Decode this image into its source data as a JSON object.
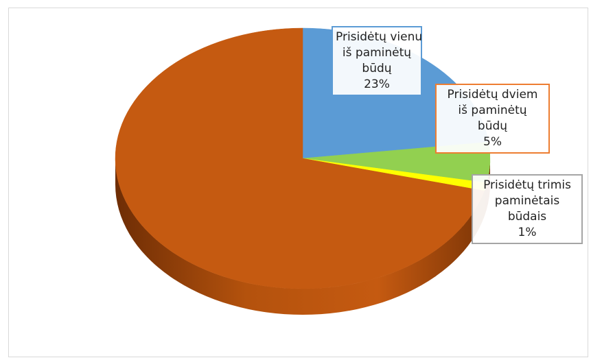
{
  "chart_data": {
    "type": "pie",
    "style": "3d",
    "slices": [
      {
        "label_lines": [
          "Prisidėtų vienu",
          "iš paminėtų",
          "būdų"
        ],
        "value": 23,
        "display": "23%",
        "color": "#5b9bd5"
      },
      {
        "label_lines": [
          "Prisidėtų dviem",
          "iš paminėtų",
          "būdų"
        ],
        "value": 5,
        "display": "5%",
        "color": "#92d050"
      },
      {
        "label_lines": [
          "Prisidėtų trimis",
          "paminėtais",
          "būdais"
        ],
        "value": 1,
        "display": "1%",
        "color": "#ffff00"
      },
      {
        "label_lines": [],
        "value": 71,
        "display": "",
        "color": "#c55a11"
      }
    ]
  },
  "labels": [
    {
      "line1": "Prisidėtų vienu",
      "line2": "iš paminėtų",
      "line3": "būdų",
      "pct": "23%",
      "border": "#5b9bd5"
    },
    {
      "line1": "Prisidėtų dviem",
      "line2": "iš paminėtų",
      "line3": "būdų",
      "pct": "5%",
      "border": "#ed7d31"
    },
    {
      "line1": "Prisidėtų trimis",
      "line2": "paminėtais",
      "line3": "būdais",
      "pct": "1%",
      "border": "#a5a5a5"
    }
  ]
}
